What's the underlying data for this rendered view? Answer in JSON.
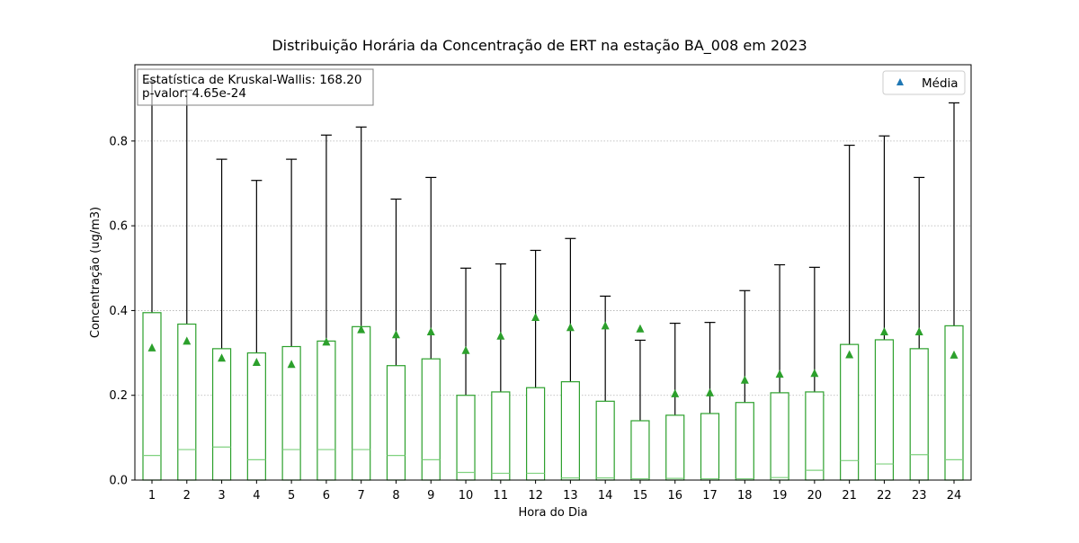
{
  "chart_data": {
    "type": "box",
    "title": "Distribuição Horária da Concentração de ERT na estação BA_008 em 2023",
    "xlabel": "Hora do Dia",
    "ylabel": "Concentração (ug/m3)",
    "ylim": [
      0,
      0.98
    ],
    "yticks": [
      "0.0",
      "0.2",
      "0.4",
      "0.6",
      "0.8"
    ],
    "grid": "y-dotted",
    "legend": {
      "placement": "top-right",
      "label": "Média"
    },
    "stats_text": [
      "Estatística de Kruskal-Wallis: 168.20",
      "p-valor: 4.65e-24"
    ],
    "colors": {
      "box": "#2ca02c",
      "median": "#7fd17f",
      "mean": "#2ca02c",
      "legend_marker": "#1f77b4",
      "whisker": "#000000",
      "grid": "#b0b0b0"
    },
    "categories": [
      "1",
      "2",
      "3",
      "4",
      "5",
      "6",
      "7",
      "8",
      "9",
      "10",
      "11",
      "12",
      "13",
      "14",
      "15",
      "16",
      "17",
      "18",
      "19",
      "20",
      "21",
      "22",
      "23",
      "24"
    ],
    "boxes": [
      {
        "q1": 0,
        "median": 0.058,
        "q3": 0.395,
        "whisker_high": 0.94,
        "mean": 0.312
      },
      {
        "q1": 0,
        "median": 0.072,
        "q3": 0.368,
        "whisker_high": 0.92,
        "mean": 0.328
      },
      {
        "q1": 0,
        "median": 0.078,
        "q3": 0.31,
        "whisker_high": 0.757,
        "mean": 0.288
      },
      {
        "q1": 0,
        "median": 0.048,
        "q3": 0.3,
        "whisker_high": 0.707,
        "mean": 0.278
      },
      {
        "q1": 0,
        "median": 0.072,
        "q3": 0.315,
        "whisker_high": 0.757,
        "mean": 0.273
      },
      {
        "q1": 0,
        "median": 0.072,
        "q3": 0.328,
        "whisker_high": 0.814,
        "mean": 0.326
      },
      {
        "q1": 0,
        "median": 0.072,
        "q3": 0.362,
        "whisker_high": 0.833,
        "mean": 0.355
      },
      {
        "q1": 0,
        "median": 0.058,
        "q3": 0.27,
        "whisker_high": 0.663,
        "mean": 0.343
      },
      {
        "q1": 0,
        "median": 0.048,
        "q3": 0.286,
        "whisker_high": 0.714,
        "mean": 0.35
      },
      {
        "q1": 0,
        "median": 0.018,
        "q3": 0.2,
        "whisker_high": 0.5,
        "mean": 0.306
      },
      {
        "q1": 0,
        "median": 0.016,
        "q3": 0.208,
        "whisker_high": 0.51,
        "mean": 0.34
      },
      {
        "q1": 0,
        "median": 0.016,
        "q3": 0.218,
        "whisker_high": 0.542,
        "mean": 0.384
      },
      {
        "q1": 0,
        "median": 0.005,
        "q3": 0.232,
        "whisker_high": 0.57,
        "mean": 0.36
      },
      {
        "q1": 0,
        "median": 0.005,
        "q3": 0.186,
        "whisker_high": 0.434,
        "mean": 0.364
      },
      {
        "q1": 0,
        "median": 0.003,
        "q3": 0.14,
        "whisker_high": 0.33,
        "mean": 0.357
      },
      {
        "q1": 0,
        "median": 0.004,
        "q3": 0.153,
        "whisker_high": 0.37,
        "mean": 0.204
      },
      {
        "q1": 0,
        "median": 0.003,
        "q3": 0.157,
        "whisker_high": 0.372,
        "mean": 0.206
      },
      {
        "q1": 0,
        "median": 0.003,
        "q3": 0.183,
        "whisker_high": 0.447,
        "mean": 0.236
      },
      {
        "q1": 0,
        "median": 0.006,
        "q3": 0.206,
        "whisker_high": 0.508,
        "mean": 0.25
      },
      {
        "q1": 0,
        "median": 0.023,
        "q3": 0.208,
        "whisker_high": 0.502,
        "mean": 0.252
      },
      {
        "q1": 0,
        "median": 0.046,
        "q3": 0.32,
        "whisker_high": 0.79,
        "mean": 0.296
      },
      {
        "q1": 0,
        "median": 0.038,
        "q3": 0.331,
        "whisker_high": 0.812,
        "mean": 0.35
      },
      {
        "q1": 0,
        "median": 0.06,
        "q3": 0.31,
        "whisker_high": 0.714,
        "mean": 0.35
      },
      {
        "q1": 0,
        "median": 0.048,
        "q3": 0.364,
        "whisker_high": 0.89,
        "mean": 0.295
      }
    ]
  }
}
